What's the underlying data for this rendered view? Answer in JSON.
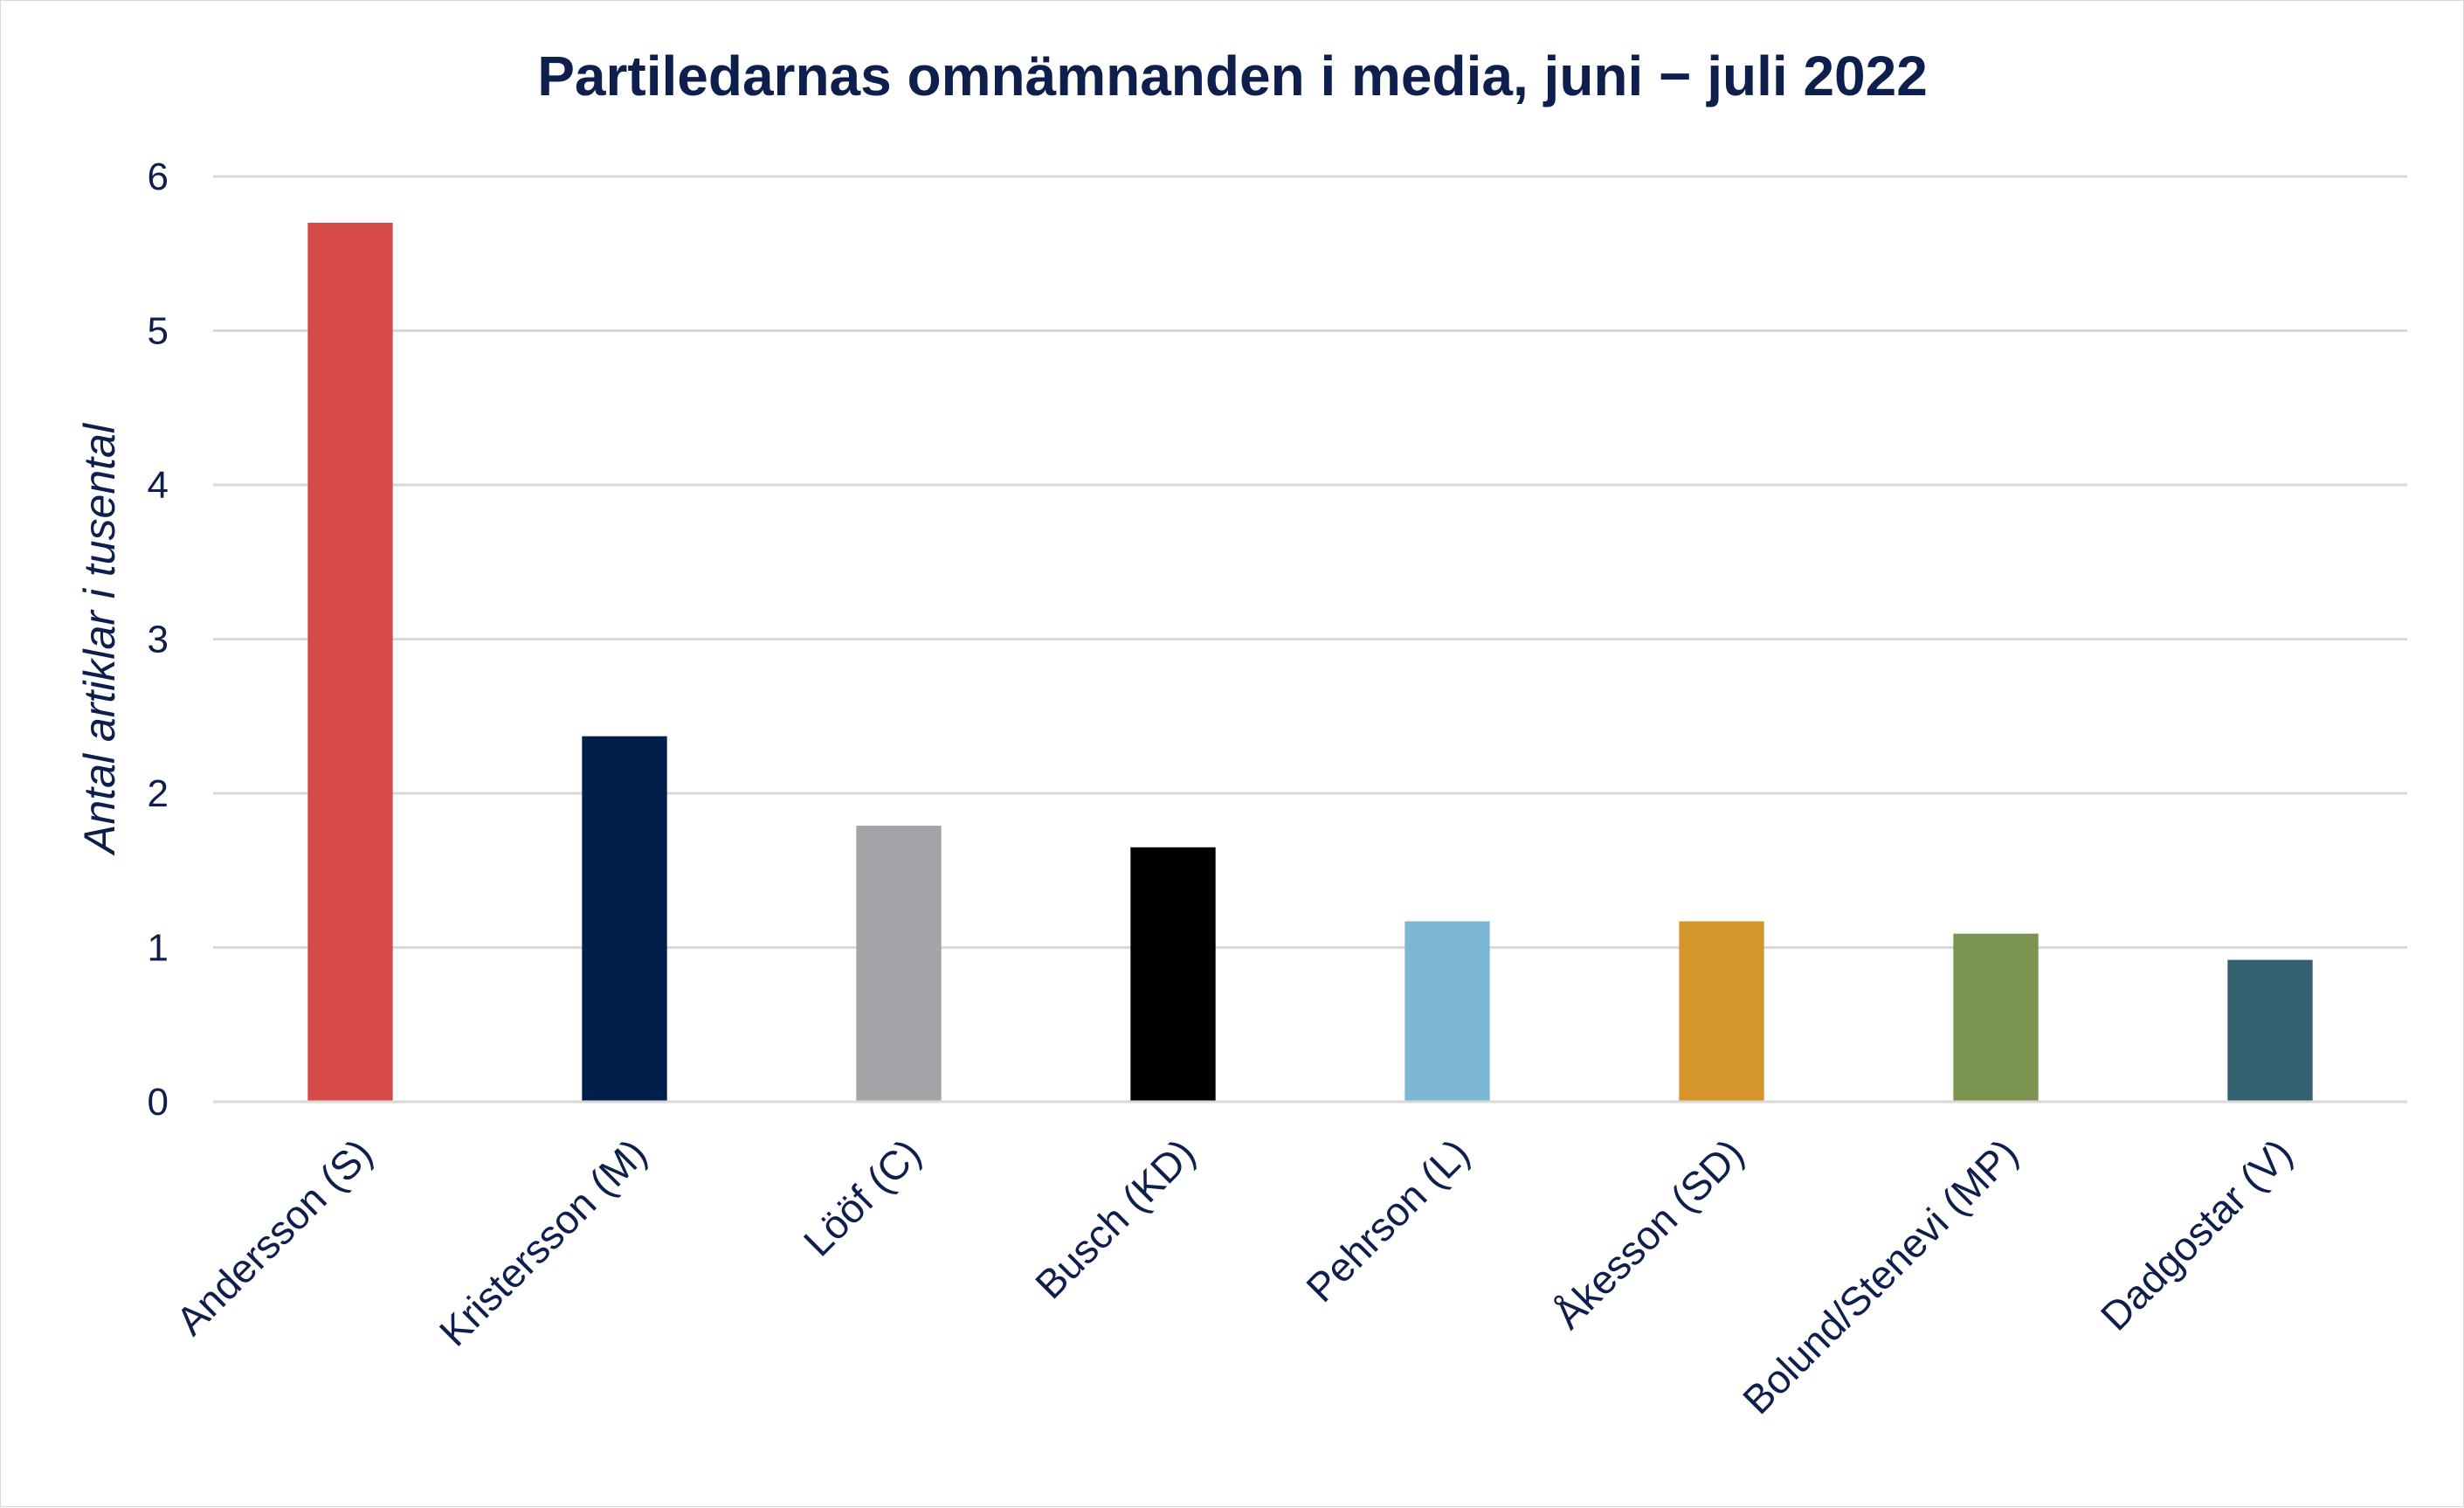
{
  "chart_data": {
    "type": "bar",
    "title": "Partiledarnas omnämnanden i media, juni − juli 2022",
    "ylabel": "Antal artiklar i tusental",
    "xlabel": "",
    "ylim": [
      0,
      6
    ],
    "yticks": [
      0,
      1,
      2,
      3,
      4,
      5,
      6
    ],
    "grid": true,
    "legend": "none",
    "categories": [
      "Andersson (S)",
      "Kristersson (M)",
      "Lööf (C)",
      "Busch (KD)",
      "Pehrson (L)",
      "Åkesson (SD)",
      "Bolund/Stenevi (MP)",
      "Dadgostar (V)"
    ],
    "values": [
      5.7,
      2.37,
      1.79,
      1.65,
      1.17,
      1.17,
      1.09,
      0.92
    ],
    "colors": [
      "#d64a4a",
      "#001f4a",
      "#a4a3a8",
      "#000000",
      "#7cb8d3",
      "#d4952c",
      "#7a944f",
      "#34606f"
    ]
  }
}
